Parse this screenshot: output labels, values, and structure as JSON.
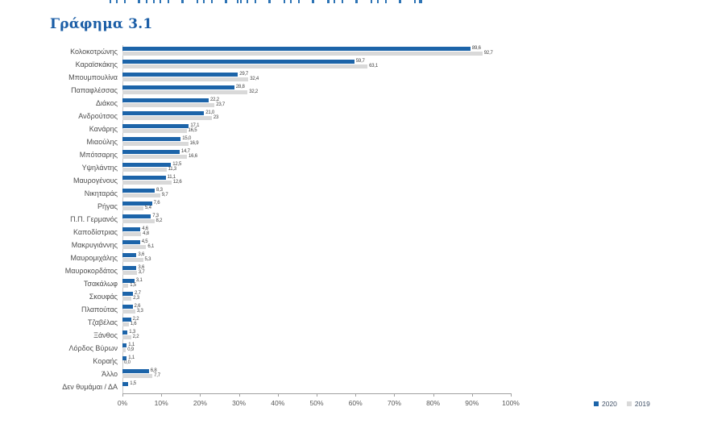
{
  "page": {
    "title": "Γράφημα 3.1"
  },
  "chart_data": {
    "type": "bar",
    "orientation": "horizontal",
    "title": "Γράφημα 3.1",
    "xlabel": "",
    "ylabel": "",
    "x_axis": {
      "min": 0,
      "max": 100,
      "unit": "%",
      "ticks": [
        "0%",
        "10%",
        "20%",
        "30%",
        "40%",
        "50%",
        "60%",
        "70%",
        "80%",
        "90%",
        "100%"
      ]
    },
    "grid": false,
    "legend": {
      "position": "bottom-right",
      "entries": [
        "2020",
        "2019"
      ]
    },
    "colors": {
      "s2020": "#1c64a9",
      "s2019": "#d9d9d9"
    },
    "categories": [
      "Κολοκοτρώνης",
      "Καραϊσκάκης",
      "Μπουμπουλίνα",
      "Παπαφλέσσας",
      "Διάκος",
      "Ανδρούτσος",
      "Κανάρης",
      "Μιαούλης",
      "Μπότσαρης",
      "Υψηλάντης",
      "Μαυρογένους",
      "Νικηταράς",
      "Ρήγας",
      "Π.Π. Γερμανός",
      "Καποδίστριας",
      "Μακρυγιάννης",
      "Μαυρομιχάλης",
      "Μαυροκορδάτος",
      "Τσακάλωφ",
      "Σκουφάς",
      "Πλαπούτας",
      "Τζαβέλας",
      "Ξάνθος",
      "Λόρδος Βύρων",
      "Κοραής",
      "Άλλο",
      "Δεν θυμάμαι / ΔΑ"
    ],
    "series": [
      {
        "name": "2020",
        "color": "#1c64a9",
        "values": [
          "89,6",
          "59,7",
          "29,7",
          "28,8",
          "22,2",
          "21,0",
          "17,1",
          "15,0",
          "14,7",
          "12,5",
          "11,1",
          "8,3",
          "7,6",
          "7,3",
          "4,6",
          "4,5",
          "3,6",
          "3,6",
          "3,1",
          "2,7",
          "2,6",
          "2,2",
          "1,3",
          "1,1",
          "1,1",
          "6,8",
          "1,5"
        ]
      },
      {
        "name": "2019",
        "color": "#d9d9d9",
        "values": [
          "92,7",
          "63,1",
          "32,4",
          "32,2",
          "23,7",
          "23",
          "16,5",
          "16,9",
          "16,6",
          "11,3",
          "12,6",
          "9,7",
          "5,4",
          "8,2",
          "4,8",
          "6,1",
          "5,3",
          "3,7",
          "1,5",
          "2,3",
          "3,3",
          "1,6",
          "2,2",
          "0,9",
          "0,0",
          "7,7",
          null
        ]
      }
    ]
  }
}
